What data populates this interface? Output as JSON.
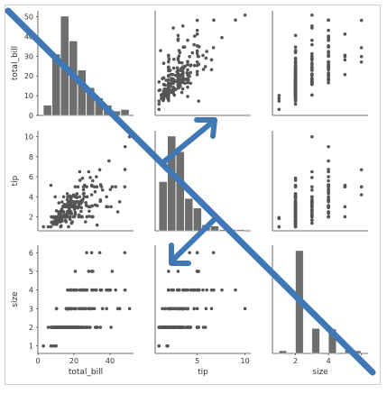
{
  "chart_data": {
    "type": "scatter",
    "variables": [
      "total_bill",
      "tip",
      "size"
    ],
    "axes": {
      "total_bill": {
        "label": "total_bill",
        "range": [
          0,
          53
        ],
        "ticks": [
          "0",
          "10",
          "20",
          "30",
          "40",
          "50"
        ]
      },
      "tip": {
        "label": "tip",
        "range": [
          0.6,
          10.6
        ],
        "ticks": [
          "2",
          "4",
          "6",
          "8",
          "10"
        ],
        "bottom_ticks": [
          "5",
          "10"
        ]
      },
      "size": {
        "label": "size",
        "range": [
          0.6,
          6.4
        ],
        "ticks": [
          "1",
          "2",
          "3",
          "4",
          "5",
          "6"
        ]
      }
    },
    "points": [
      [
        16.99,
        1.01,
        2
      ],
      [
        10.34,
        1.66,
        3
      ],
      [
        21.01,
        3.5,
        3
      ],
      [
        23.68,
        3.31,
        2
      ],
      [
        24.59,
        3.61,
        4
      ],
      [
        25.29,
        4.71,
        4
      ],
      [
        8.77,
        2.0,
        2
      ],
      [
        26.88,
        3.12,
        4
      ],
      [
        15.04,
        1.96,
        2
      ],
      [
        14.78,
        3.23,
        2
      ],
      [
        10.27,
        1.71,
        2
      ],
      [
        35.26,
        5.0,
        4
      ],
      [
        15.42,
        1.57,
        2
      ],
      [
        18.43,
        3.0,
        4
      ],
      [
        14.83,
        3.02,
        2
      ],
      [
        21.58,
        3.92,
        2
      ],
      [
        10.33,
        1.67,
        3
      ],
      [
        16.29,
        3.71,
        3
      ],
      [
        16.97,
        3.5,
        3
      ],
      [
        20.65,
        3.35,
        3
      ],
      [
        17.92,
        4.08,
        2
      ],
      [
        20.29,
        2.75,
        2
      ],
      [
        15.77,
        2.23,
        2
      ],
      [
        39.42,
        7.58,
        4
      ],
      [
        19.82,
        3.18,
        2
      ],
      [
        17.81,
        2.34,
        4
      ],
      [
        13.37,
        2.0,
        2
      ],
      [
        12.69,
        2.0,
        2
      ],
      [
        21.7,
        4.3,
        2
      ],
      [
        19.65,
        3.0,
        2
      ],
      [
        9.55,
        1.45,
        2
      ],
      [
        18.35,
        2.5,
        4
      ],
      [
        15.06,
        3.0,
        2
      ],
      [
        20.69,
        2.45,
        4
      ],
      [
        17.78,
        3.27,
        2
      ],
      [
        24.06,
        3.6,
        3
      ],
      [
        16.31,
        2.0,
        3
      ],
      [
        16.93,
        3.07,
        3
      ],
      [
        18.69,
        2.31,
        3
      ],
      [
        31.27,
        5.0,
        3
      ],
      [
        16.04,
        2.24,
        3
      ],
      [
        17.46,
        2.54,
        2
      ],
      [
        13.94,
        3.06,
        2
      ],
      [
        9.68,
        1.32,
        2
      ],
      [
        30.4,
        5.6,
        4
      ],
      [
        18.29,
        3.0,
        2
      ],
      [
        22.23,
        5.0,
        2
      ],
      [
        32.4,
        6.0,
        4
      ],
      [
        28.55,
        2.05,
        3
      ],
      [
        18.04,
        3.0,
        2
      ],
      [
        12.54,
        2.5,
        2
      ],
      [
        10.29,
        2.6,
        2
      ],
      [
        34.81,
        5.2,
        4
      ],
      [
        9.94,
        1.56,
        2
      ],
      [
        25.56,
        4.34,
        4
      ],
      [
        19.49,
        3.51,
        2
      ],
      [
        38.01,
        3.0,
        4
      ],
      [
        26.41,
        1.5,
        2
      ],
      [
        11.24,
        1.76,
        2
      ],
      [
        48.27,
        6.73,
        4
      ],
      [
        20.29,
        3.21,
        2
      ],
      [
        13.81,
        2.0,
        2
      ],
      [
        11.02,
        1.98,
        2
      ],
      [
        18.29,
        3.76,
        4
      ],
      [
        17.59,
        2.64,
        3
      ],
      [
        20.08,
        3.15,
        3
      ],
      [
        16.45,
        2.47,
        2
      ],
      [
        3.07,
        1.0,
        1
      ],
      [
        20.23,
        2.01,
        2
      ],
      [
        15.01,
        2.09,
        2
      ],
      [
        12.02,
        1.97,
        2
      ],
      [
        17.07,
        3.0,
        3
      ],
      [
        26.86,
        3.14,
        2
      ],
      [
        25.28,
        5.0,
        2
      ],
      [
        14.73,
        2.2,
        2
      ],
      [
        10.51,
        1.25,
        2
      ],
      [
        17.92,
        3.08,
        2
      ],
      [
        27.2,
        4.0,
        4
      ],
      [
        22.76,
        3.0,
        2
      ],
      [
        17.29,
        2.71,
        2
      ],
      [
        19.44,
        3.0,
        2
      ],
      [
        16.66,
        3.4,
        2
      ],
      [
        10.07,
        1.83,
        1
      ],
      [
        32.68,
        5.0,
        2
      ],
      [
        15.98,
        2.03,
        2
      ],
      [
        34.83,
        5.17,
        4
      ],
      [
        13.03,
        2.0,
        2
      ],
      [
        18.28,
        4.0,
        2
      ],
      [
        24.71,
        5.85,
        2
      ],
      [
        21.16,
        3.0,
        2
      ],
      [
        28.97,
        3.0,
        2
      ],
      [
        22.49,
        3.5,
        2
      ],
      [
        5.75,
        1.0,
        2
      ],
      [
        16.32,
        4.3,
        2
      ],
      [
        22.75,
        3.25,
        2
      ],
      [
        40.17,
        4.73,
        4
      ],
      [
        27.28,
        4.0,
        2
      ],
      [
        12.03,
        1.5,
        2
      ],
      [
        21.01,
        3.0,
        2
      ],
      [
        12.46,
        1.5,
        2
      ],
      [
        11.35,
        2.5,
        2
      ],
      [
        15.38,
        3.0,
        2
      ],
      [
        44.3,
        2.5,
        3
      ],
      [
        22.42,
        3.48,
        2
      ],
      [
        20.92,
        4.08,
        2
      ],
      [
        15.36,
        1.64,
        2
      ],
      [
        20.49,
        4.06,
        2
      ],
      [
        25.21,
        4.29,
        2
      ],
      [
        18.24,
        3.76,
        2
      ],
      [
        14.31,
        4.0,
        2
      ],
      [
        14.0,
        3.0,
        2
      ],
      [
        7.25,
        1.0,
        1
      ],
      [
        38.07,
        4.0,
        3
      ],
      [
        23.95,
        2.55,
        2
      ],
      [
        25.71,
        4.0,
        3
      ],
      [
        17.31,
        3.5,
        2
      ],
      [
        29.93,
        5.07,
        4
      ],
      [
        10.65,
        1.5,
        2
      ],
      [
        12.43,
        1.8,
        2
      ],
      [
        24.08,
        2.92,
        4
      ],
      [
        11.69,
        2.31,
        2
      ],
      [
        13.42,
        1.68,
        2
      ],
      [
        14.26,
        2.5,
        2
      ],
      [
        15.95,
        2.0,
        2
      ],
      [
        12.48,
        2.52,
        2
      ],
      [
        29.8,
        4.2,
        6
      ],
      [
        8.52,
        1.48,
        2
      ],
      [
        14.52,
        2.0,
        2
      ],
      [
        11.38,
        2.0,
        2
      ],
      [
        22.82,
        2.18,
        3
      ],
      [
        19.08,
        1.5,
        2
      ],
      [
        20.27,
        2.83,
        2
      ],
      [
        11.17,
        1.5,
        2
      ],
      [
        12.26,
        2.0,
        2
      ],
      [
        18.26,
        3.25,
        2
      ],
      [
        8.51,
        1.25,
        2
      ],
      [
        10.33,
        2.0,
        2
      ],
      [
        14.15,
        2.0,
        2
      ],
      [
        16.0,
        2.0,
        2
      ],
      [
        13.16,
        2.75,
        2
      ],
      [
        17.47,
        3.5,
        2
      ],
      [
        34.3,
        6.7,
        6
      ],
      [
        41.19,
        5.0,
        5
      ],
      [
        27.05,
        5.0,
        6
      ],
      [
        16.43,
        2.3,
        2
      ],
      [
        8.35,
        1.5,
        2
      ],
      [
        18.64,
        1.36,
        3
      ],
      [
        11.87,
        1.63,
        2
      ],
      [
        9.78,
        1.73,
        2
      ],
      [
        7.51,
        2.0,
        2
      ],
      [
        14.07,
        2.5,
        2
      ],
      [
        13.13,
        2.0,
        2
      ],
      [
        17.26,
        2.74,
        3
      ],
      [
        24.55,
        2.0,
        4
      ],
      [
        19.77,
        2.0,
        4
      ],
      [
        29.85,
        5.14,
        5
      ],
      [
        48.17,
        5.0,
        6
      ],
      [
        25.0,
        3.75,
        4
      ],
      [
        13.39,
        2.61,
        2
      ],
      [
        16.49,
        2.0,
        4
      ],
      [
        21.5,
        3.5,
        4
      ],
      [
        12.66,
        2.5,
        2
      ],
      [
        16.21,
        2.0,
        3
      ],
      [
        13.81,
        2.0,
        2
      ],
      [
        17.51,
        3.0,
        2
      ],
      [
        24.52,
        3.48,
        3
      ],
      [
        20.76,
        2.24,
        2
      ],
      [
        31.71,
        4.5,
        4
      ],
      [
        10.59,
        1.61,
        2
      ],
      [
        10.63,
        2.0,
        2
      ],
      [
        50.81,
        10.0,
        3
      ],
      [
        15.81,
        3.16,
        2
      ],
      [
        7.25,
        5.15,
        2
      ],
      [
        31.85,
        3.18,
        2
      ],
      [
        16.82,
        4.0,
        2
      ],
      [
        32.9,
        3.11,
        2
      ],
      [
        17.89,
        2.0,
        2
      ],
      [
        14.48,
        2.0,
        2
      ],
      [
        9.6,
        4.0,
        2
      ],
      [
        34.63,
        3.55,
        2
      ],
      [
        34.65,
        3.68,
        4
      ],
      [
        23.33,
        5.65,
        2
      ],
      [
        45.35,
        3.5,
        3
      ],
      [
        23.17,
        6.5,
        4
      ],
      [
        40.55,
        3.0,
        2
      ],
      [
        20.69,
        5.0,
        5
      ],
      [
        20.9,
        3.5,
        3
      ],
      [
        30.46,
        2.0,
        5
      ],
      [
        18.15,
        3.5,
        3
      ],
      [
        23.1,
        4.0,
        3
      ],
      [
        15.69,
        1.5,
        2
      ],
      [
        19.81,
        4.19,
        2
      ],
      [
        28.44,
        2.56,
        2
      ],
      [
        15.48,
        2.02,
        2
      ],
      [
        16.58,
        4.0,
        2
      ],
      [
        7.56,
        1.44,
        2
      ],
      [
        10.34,
        2.0,
        2
      ],
      [
        43.11,
        5.0,
        4
      ],
      [
        13.0,
        2.0,
        2
      ],
      [
        13.51,
        2.0,
        2
      ],
      [
        18.71,
        4.0,
        3
      ],
      [
        12.74,
        2.01,
        2
      ],
      [
        13.0,
        2.0,
        2
      ],
      [
        16.4,
        2.5,
        2
      ],
      [
        20.53,
        4.0,
        4
      ],
      [
        16.47,
        3.23,
        3
      ],
      [
        26.59,
        3.41,
        3
      ],
      [
        38.73,
        3.0,
        4
      ],
      [
        24.27,
        2.03,
        2
      ],
      [
        12.76,
        2.23,
        2
      ],
      [
        30.06,
        2.0,
        3
      ],
      [
        25.89,
        5.16,
        4
      ],
      [
        48.33,
        9.0,
        4
      ],
      [
        13.27,
        2.5,
        2
      ],
      [
        28.17,
        6.5,
        3
      ],
      [
        12.9,
        1.1,
        2
      ],
      [
        28.15,
        3.0,
        5
      ],
      [
        11.59,
        1.5,
        2
      ],
      [
        7.74,
        1.44,
        2
      ],
      [
        30.14,
        3.09,
        4
      ],
      [
        12.16,
        2.2,
        2
      ],
      [
        13.42,
        3.48,
        2
      ],
      [
        8.58,
        1.92,
        1
      ],
      [
        15.98,
        3.0,
        3
      ],
      [
        13.42,
        1.58,
        2
      ],
      [
        16.27,
        2.5,
        2
      ],
      [
        10.09,
        2.0,
        2
      ],
      [
        20.45,
        3.0,
        4
      ],
      [
        13.28,
        2.72,
        2
      ],
      [
        22.12,
        2.88,
        2
      ],
      [
        24.01,
        2.0,
        4
      ],
      [
        15.69,
        3.0,
        3
      ],
      [
        11.61,
        3.39,
        2
      ],
      [
        10.77,
        1.47,
        2
      ],
      [
        15.53,
        3.0,
        2
      ],
      [
        10.07,
        1.25,
        2
      ],
      [
        12.6,
        1.0,
        2
      ],
      [
        32.83,
        1.17,
        2
      ],
      [
        35.83,
        4.67,
        3
      ],
      [
        29.03,
        5.92,
        3
      ],
      [
        27.18,
        2.0,
        2
      ],
      [
        22.67,
        2.0,
        2
      ],
      [
        17.82,
        1.75,
        2
      ],
      [
        18.78,
        3.0,
        2
      ]
    ],
    "histograms": {
      "total_bill": {
        "bins": [
          3.07,
          7.84,
          12.62,
          17.39,
          22.16,
          26.94,
          31.71,
          36.48,
          41.26,
          46.03,
          50.81
        ],
        "counts": [
          7,
          42,
          68,
          51,
          31,
          19,
          12,
          7,
          3,
          4
        ]
      },
      "tip": {
        "bins": [
          1.0,
          1.9,
          2.8,
          3.7,
          4.6,
          5.5,
          6.4,
          7.3,
          8.2,
          9.1,
          10.0
        ],
        "counts": [
          41,
          79,
          66,
          27,
          19,
          5,
          4,
          1,
          1,
          1
        ]
      },
      "size": {
        "bins": [
          1.0,
          1.5,
          2.0,
          2.5,
          3.0,
          3.5,
          4.0,
          4.5,
          5.0,
          5.5,
          6.0
        ],
        "counts": [
          4,
          0,
          156,
          0,
          38,
          0,
          37,
          0,
          5,
          4
        ]
      }
    },
    "grid": false,
    "legend": "none",
    "marker_color": "#555555",
    "hist_color": "#6e6e6e",
    "arrow_color": "#3f78b5"
  }
}
